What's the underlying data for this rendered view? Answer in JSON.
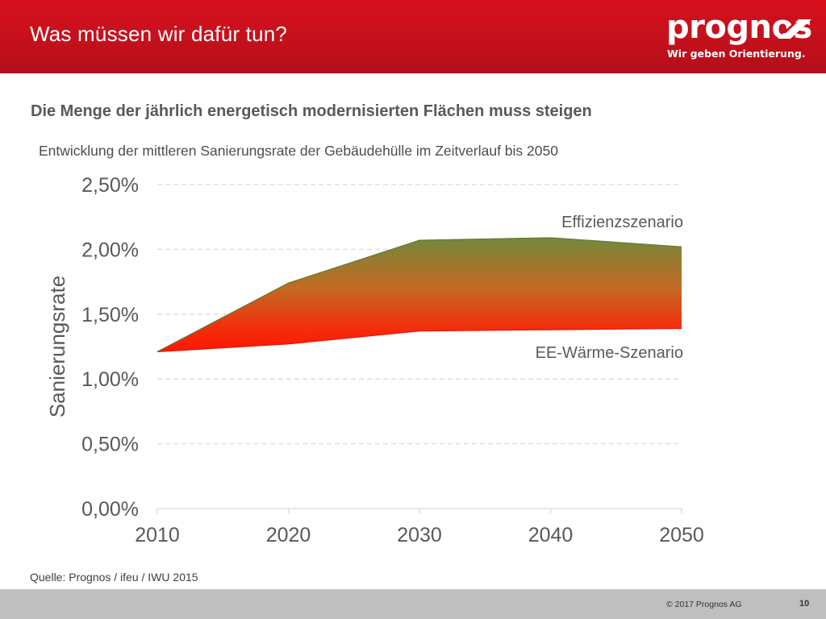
{
  "header": {
    "title": "Was müssen wir dafür tun?",
    "logo_word": "prognos",
    "logo_tagline": "Wir geben Orientierung."
  },
  "subtitle": "Die Menge der jährlich energetisch modernisierten Flächen muss steigen",
  "chart_caption": "Entwicklung der mittleren Sanierungsrate der Gebäudehülle im Zeitverlauf bis 2050",
  "chart_data": {
    "type": "area",
    "title": "",
    "xlabel": "",
    "ylabel": "Sanierungsrate",
    "x": [
      2010,
      2020,
      2030,
      2040,
      2050
    ],
    "xlim": [
      2010,
      2050
    ],
    "ylim": [
      0,
      2.5
    ],
    "y_unit": "%",
    "y_ticks": [
      0,
      0.5,
      1.0,
      1.5,
      2.0,
      2.5
    ],
    "y_tick_labels": [
      "0,00%",
      "0,50%",
      "1,00%",
      "1,50%",
      "2,00%",
      "2,50%"
    ],
    "x_tick_labels": [
      "2010",
      "2020",
      "2030",
      "2040",
      "2050"
    ],
    "grid": "horizontal dashed",
    "series": [
      {
        "name": "Effizienzszenario",
        "values": [
          1.21,
          1.74,
          2.07,
          2.09,
          2.02
        ]
      },
      {
        "name": "EE-Wärme-Szenario",
        "values": [
          1.21,
          1.27,
          1.37,
          1.38,
          1.39
        ]
      }
    ],
    "colors": {
      "upper": "#6e8b3d",
      "lower": "#ff1a00",
      "grid": "#d9d9d9",
      "text": "#595959"
    }
  },
  "source": "Quelle: Prognos / ifeu / IWU 2015",
  "footer": {
    "copyright": "© 2017 Prognos AG",
    "page_number": "10"
  },
  "colors": {
    "header_red": "#c8101c",
    "footer_gray": "#bfbfbf"
  }
}
